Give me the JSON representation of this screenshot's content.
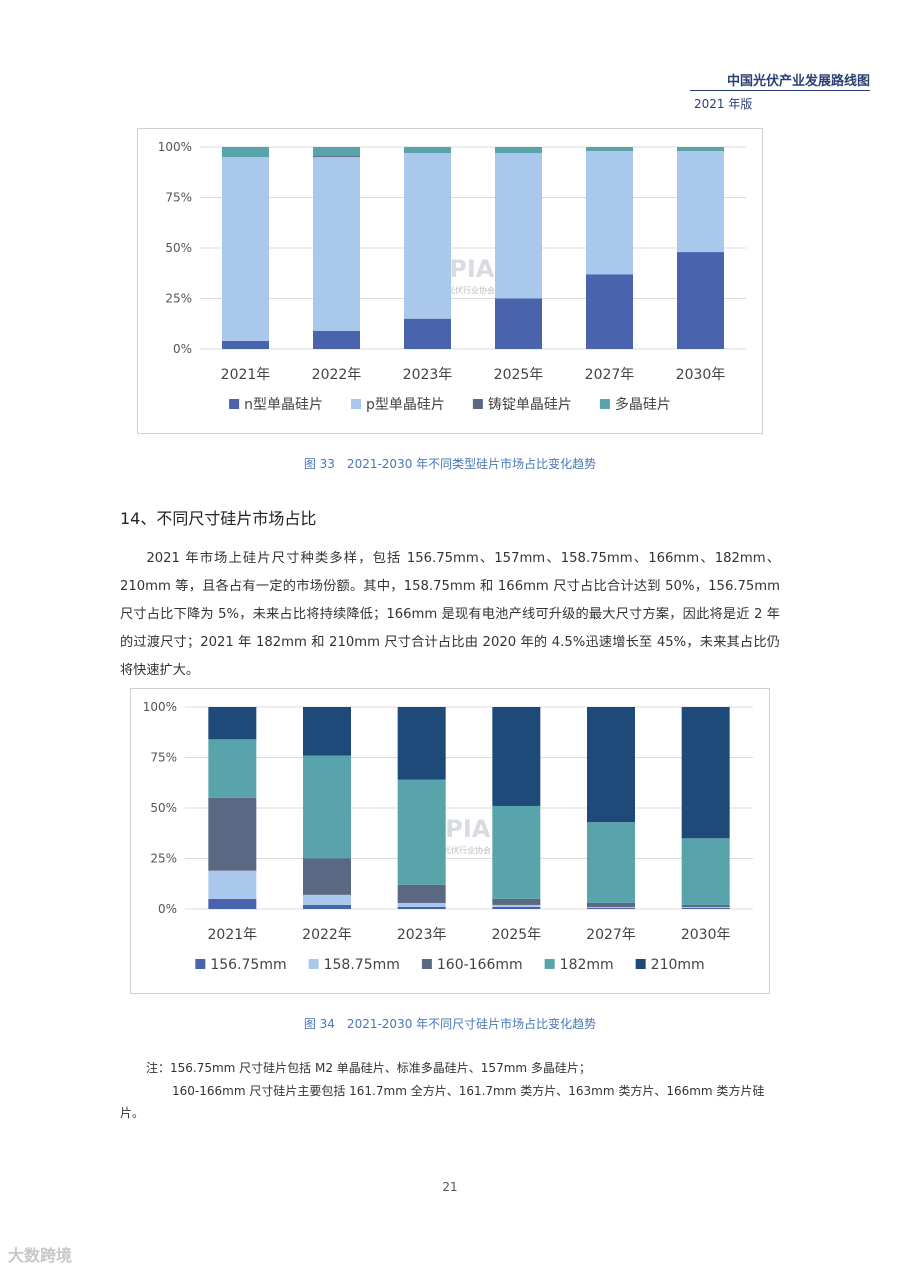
{
  "header": {
    "title": "中国光伏产业发展路线图",
    "edition": "2021 年版"
  },
  "charts": [
    {
      "type": "bar",
      "stacked": true,
      "categories": [
        "2021年",
        "2022年",
        "2023年",
        "2025年",
        "2027年",
        "2030年"
      ],
      "ylim": [
        0,
        100
      ],
      "yticks": [
        "0%",
        "25%",
        "50%",
        "75%",
        "100%"
      ],
      "legend_position": "bottom",
      "watermark": "CPIA",
      "watermark_sub": "中国光伏行业协会",
      "series": [
        {
          "name": "n型单晶硅片",
          "color": "#4a63ad",
          "values": [
            4,
            9,
            15,
            25,
            37,
            48
          ]
        },
        {
          "name": "p型单晶硅片",
          "color": "#a9c8eb",
          "values": [
            91,
            86,
            82,
            72,
            61,
            50
          ]
        },
        {
          "name": "铸锭单晶硅片",
          "color": "#5a6883",
          "values": [
            0,
            0.5,
            0,
            0,
            0,
            0
          ]
        },
        {
          "name": "多晶硅片",
          "color": "#59a3ab",
          "values": [
            5,
            4.5,
            3,
            3,
            2,
            2
          ]
        }
      ]
    },
    {
      "type": "bar",
      "stacked": true,
      "categories": [
        "2021年",
        "2022年",
        "2023年",
        "2025年",
        "2027年",
        "2030年"
      ],
      "ylim": [
        0,
        100
      ],
      "yticks": [
        "0%",
        "25%",
        "50%",
        "75%",
        "100%"
      ],
      "legend_position": "bottom",
      "watermark": "CPIA",
      "watermark_sub": "中国光伏行业协会",
      "series": [
        {
          "name": "156.75mm",
          "color": "#4a63ad",
          "values": [
            5,
            2,
            1,
            1,
            0.5,
            0.5
          ]
        },
        {
          "name": "158.75mm",
          "color": "#a9c8eb",
          "values": [
            14,
            5,
            2,
            1,
            0.5,
            0.5
          ]
        },
        {
          "name": "160-166mm",
          "color": "#5a6883",
          "values": [
            36,
            18,
            9,
            3,
            2,
            1
          ]
        },
        {
          "name": "182mm",
          "color": "#59a3ab",
          "values": [
            29,
            51,
            52,
            46,
            40,
            33
          ]
        },
        {
          "name": "210mm",
          "color": "#1e4a7a",
          "values": [
            16,
            24,
            36,
            49,
            57,
            65
          ]
        }
      ]
    }
  ],
  "chart_data": [
    {
      "type": "bar",
      "categories": [
        "2021年",
        "2022年",
        "2023年",
        "2025年",
        "2027年",
        "2030年"
      ],
      "series": [
        {
          "name": "n型单晶硅片",
          "values": [
            4,
            9,
            15,
            25,
            37,
            48
          ]
        },
        {
          "name": "p型单晶硅片",
          "values": [
            91,
            86,
            82,
            72,
            61,
            50
          ]
        },
        {
          "name": "铸锭单晶硅片",
          "values": [
            0,
            0.5,
            0,
            0,
            0,
            0
          ]
        },
        {
          "name": "多晶硅片",
          "values": [
            5,
            4.5,
            3,
            3,
            2,
            2
          ]
        }
      ],
      "ylim": [
        0,
        100
      ],
      "stacked": true,
      "legend_position": "bottom"
    },
    {
      "type": "bar",
      "categories": [
        "2021年",
        "2022年",
        "2023年",
        "2025年",
        "2027年",
        "2030年"
      ],
      "series": [
        {
          "name": "156.75mm",
          "values": [
            5,
            2,
            1,
            1,
            0.5,
            0.5
          ]
        },
        {
          "name": "158.75mm",
          "values": [
            14,
            5,
            2,
            1,
            0.5,
            0.5
          ]
        },
        {
          "name": "160-166mm",
          "values": [
            36,
            18,
            9,
            3,
            2,
            1
          ]
        },
        {
          "name": "182mm",
          "values": [
            29,
            51,
            52,
            46,
            40,
            33
          ]
        },
        {
          "name": "210mm",
          "values": [
            16,
            24,
            36,
            49,
            57,
            65
          ]
        }
      ],
      "ylim": [
        0,
        100
      ],
      "stacked": true,
      "legend_position": "bottom"
    }
  ],
  "figure33": {
    "caption": "图 33　2021-2030 年不同类型硅片市场占比变化趋势"
  },
  "section": {
    "heading": "14、不同尺寸硅片市场占比"
  },
  "paragraph": "2021 年市场上硅片尺寸种类多样，包括 156.75mm、157mm、158.75mm、166mm、182mm、210mm 等，且各占有一定的市场份额。其中，158.75mm 和 166mm 尺寸占比合计达到 50%，156.75mm 尺寸占比下降为 5%，未来占比将持续降低；166mm 是现有电池产线可升级的最大尺寸方案，因此将是近 2 年的过渡尺寸；2021 年 182mm 和 210mm 尺寸合计占比由 2020 年的 4.5%迅速增长至 45%，未来其占比仍将快速扩大。",
  "figure34": {
    "caption": "图 34　2021-2030 年不同尺寸硅片市场占比变化趋势"
  },
  "note": {
    "line1": "注：156.75mm 尺寸硅片包括 M2 单晶硅片、标准多晶硅片、157mm 多晶硅片；",
    "line2": "160-166mm 尺寸硅片主要包括 161.7mm 全方片、161.7mm 类方片、163mm 类方片、166mm 类方片硅片。"
  },
  "page_number": "21",
  "footer": {
    "brand": "大数跨境"
  }
}
